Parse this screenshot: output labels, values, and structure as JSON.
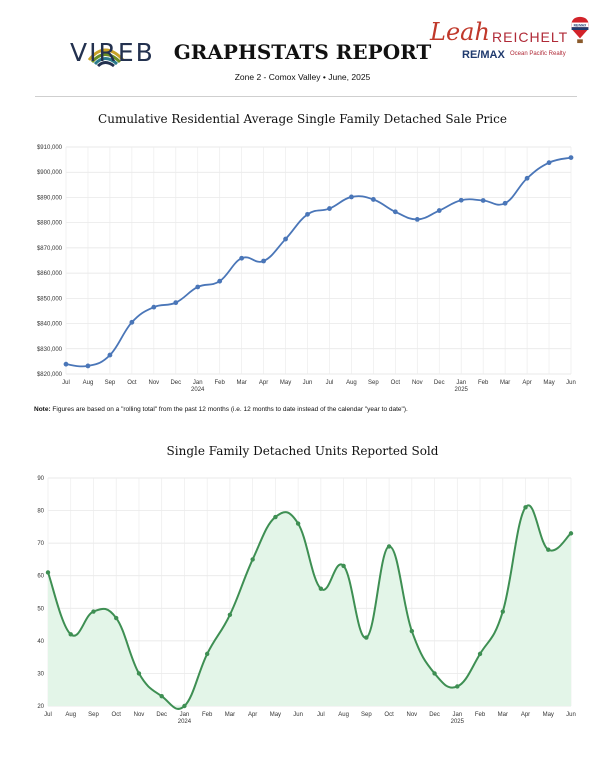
{
  "header": {
    "logo_text": "VIREB",
    "title": "GRAPHSTATS REPORT",
    "subtitle": "Zone 2 - Comox Valley  •  June, 2025",
    "brand_first": "Leah",
    "brand_last": "REICHELT",
    "brand_company": "RE/MAX",
    "brand_office": "Ocean Pacific Realty",
    "balloon_text": "RE/MAX"
  },
  "note": {
    "label": "Note:",
    "text": " Figures are based on a \"rolling total\" from the past 12 months (i.e. 12 months to date instead of the calendar \"year to date\")."
  },
  "colors": {
    "line1": "#4a76b8",
    "line2": "#3e8f53",
    "fill2": "#e3f5e8"
  },
  "chart_data": [
    {
      "type": "line",
      "title": "Cumulative Residential Average Single Family Detached Sale Price",
      "x": [
        "Jul",
        "Aug",
        "Sep",
        "Oct",
        "Nov",
        "Dec",
        "Jan",
        "Feb",
        "Mar",
        "Apr",
        "May",
        "Jun",
        "Jul",
        "Aug",
        "Sep",
        "Oct",
        "Nov",
        "Dec",
        "Jan",
        "Feb",
        "Mar",
        "Apr",
        "May",
        "Jun"
      ],
      "tick_labels": [
        "Jul",
        "Aug",
        "Sep",
        "Oct",
        "Nov",
        "Dec",
        "Jan",
        "Feb",
        "Mar",
        "Apr",
        "May",
        "Jun",
        "Jul",
        "Aug",
        "Sep",
        "Oct",
        "Nov",
        "Dec",
        "Jan",
        "Feb",
        "Mar",
        "Apr",
        "May",
        "Jun"
      ],
      "year_labels": [
        {
          "index": 6,
          "label": "2024"
        },
        {
          "index": 18,
          "label": "2025"
        }
      ],
      "y_ticks": [
        "$820,000",
        "$830,000",
        "$840,000",
        "$850,000",
        "$860,000",
        "$870,000",
        "$880,000",
        "$890,000",
        "$900,000",
        "$910,000"
      ],
      "ylim": [
        820000,
        910000
      ],
      "values": [
        823900,
        823200,
        827500,
        840500,
        846500,
        848300,
        854500,
        856800,
        865900,
        864800,
        873500,
        883300,
        885600,
        890200,
        889200,
        884300,
        881300,
        884800,
        888900,
        888800,
        887700,
        897600,
        903800,
        905800
      ],
      "grid": true
    },
    {
      "type": "area",
      "title": "Single Family Detached Units Reported Sold",
      "x": [
        "Jul",
        "Aug",
        "Sep",
        "Oct",
        "Nov",
        "Dec",
        "Jan",
        "Feb",
        "Mar",
        "Apr",
        "May",
        "Jun",
        "Jul",
        "Aug",
        "Sep",
        "Oct",
        "Nov",
        "Dec",
        "Jan",
        "Feb",
        "Mar",
        "Apr",
        "May",
        "Jun"
      ],
      "tick_labels": [
        "Jul",
        "Aug",
        "Sep",
        "Oct",
        "Nov",
        "Dec",
        "Jan",
        "Feb",
        "Mar",
        "Apr",
        "May",
        "Jun",
        "Jul",
        "Aug",
        "Sep",
        "Oct",
        "Nov",
        "Dec",
        "Jan",
        "Feb",
        "Mar",
        "Apr",
        "May",
        "Jun"
      ],
      "year_labels": [
        {
          "index": 6,
          "label": "2024"
        },
        {
          "index": 18,
          "label": "2025"
        }
      ],
      "y_ticks": [
        "20",
        "30",
        "40",
        "50",
        "60",
        "70",
        "80",
        "90"
      ],
      "ylim": [
        20,
        90
      ],
      "values": [
        61,
        42,
        49,
        47,
        30,
        23,
        20,
        36,
        48,
        65,
        78,
        76,
        56,
        63,
        41,
        69,
        43,
        30,
        26,
        36,
        49,
        81,
        68,
        73
      ],
      "grid": true
    }
  ]
}
